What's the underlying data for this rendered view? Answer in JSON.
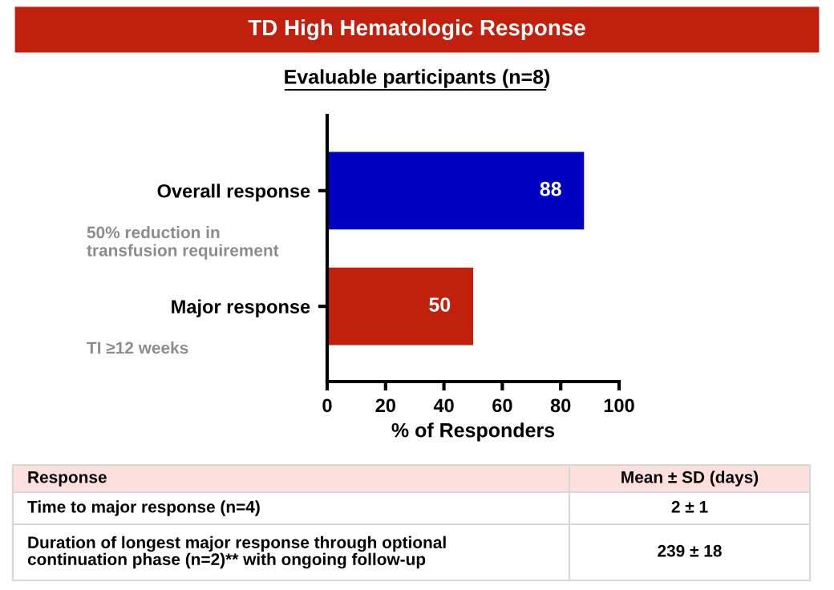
{
  "chart_data": {
    "type": "bar",
    "orientation": "horizontal",
    "title": "TD High Hematologic Response",
    "subtitle": "Evaluable participants (n=8)",
    "categories": [
      "Overall response",
      "Major response"
    ],
    "values": [
      88,
      50
    ],
    "colors": [
      "#0000c0",
      "#c0200c"
    ],
    "data_labels": true,
    "xlim": [
      0,
      100
    ],
    "xticks": [
      0,
      20,
      40,
      60,
      80,
      100
    ],
    "xlabel": "% of Responders",
    "grid": false,
    "annotations": [
      "50% reduction in\ntransfusion requirement",
      "TI ≥12 weeks",
      "Response",
      "Mean ± SD (days)",
      "Time to major response (n=4)",
      "2 ± 1",
      "Duration of longest major response through optional\ncontinuation phase (n=2)** with ongoing follow-up",
      "239 ± 18"
    ]
  }
}
